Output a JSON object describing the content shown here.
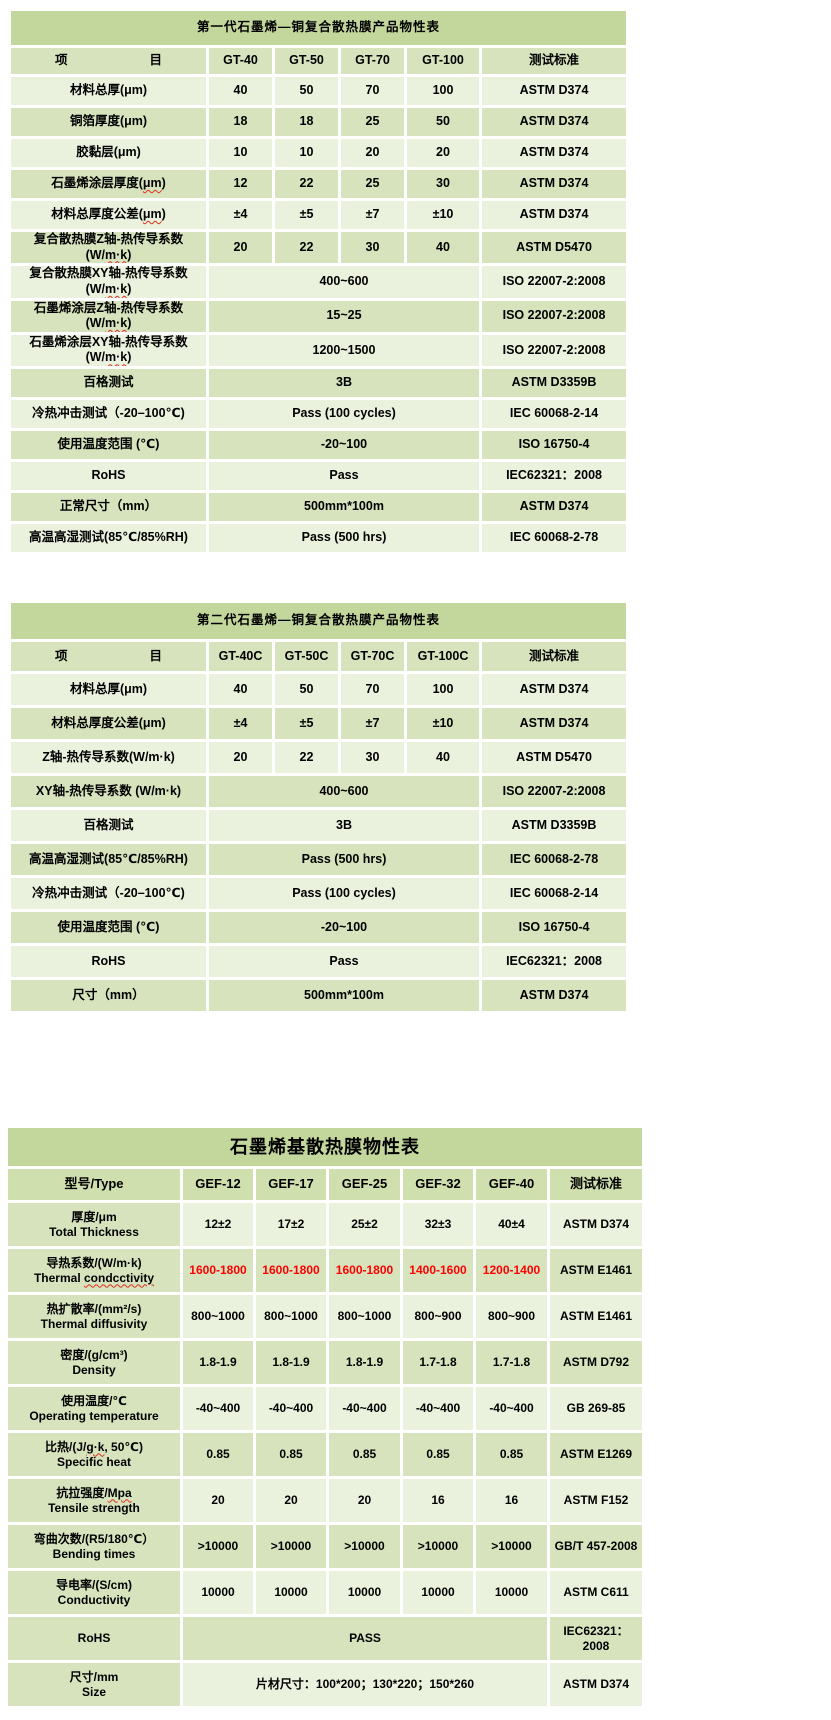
{
  "colors": {
    "title_bg": "#c3d69b",
    "band_dark": "#d6e3bc",
    "band_light": "#eaf1dd",
    "header_bg": "#d0dfae",
    "grid": "#ffffff",
    "text": "#000000",
    "highlight_red": "#ff0000"
  },
  "table1": {
    "title": "第一代石墨烯—铜复合散热膜产品物性表",
    "item_header_left": "项",
    "item_header_right": "目",
    "columns": [
      "GT-40",
      "GT-50",
      "GT-70",
      "GT-100"
    ],
    "standard_header": "测试标准",
    "rows": [
      {
        "label": [
          [
            "材料总厚(μm)",
            0
          ]
        ],
        "values": [
          "40",
          "50",
          "70",
          "100"
        ],
        "standard": "ASTM D374"
      },
      {
        "label": [
          [
            "铜箔厚度(μm)",
            0
          ]
        ],
        "values": [
          "18",
          "18",
          "25",
          "50"
        ],
        "standard": "ASTM D374"
      },
      {
        "label": [
          [
            "胶黏层(μm)",
            0
          ]
        ],
        "values": [
          "10",
          "10",
          "20",
          "20"
        ],
        "standard": "ASTM D374"
      },
      {
        "label": [
          [
            "石墨烯涂层厚度(",
            0
          ],
          [
            "μm",
            1
          ],
          [
            ")",
            0
          ]
        ],
        "values": [
          "12",
          "22",
          "25",
          "30"
        ],
        "standard": "ASTM D374"
      },
      {
        "label": [
          [
            "材料总厚度公差(",
            0
          ],
          [
            "μm",
            1
          ],
          [
            ")",
            0
          ]
        ],
        "values": [
          "±4",
          "±5",
          "±7",
          "±10"
        ],
        "standard": "ASTM D374"
      },
      {
        "label": [
          [
            "复合散热膜Z轴-热传导系数(W/",
            0
          ],
          [
            "m·k",
            1
          ],
          [
            ")",
            0
          ]
        ],
        "values": [
          "20",
          "22",
          "30",
          "40"
        ],
        "standard": "ASTM D5470"
      },
      {
        "label": [
          [
            "复合散热膜XY轴-热传导系数 (W/",
            0
          ],
          [
            "m·k",
            1
          ],
          [
            ")",
            0
          ]
        ],
        "value": "400~600",
        "standard": "ISO 22007-2:2008"
      },
      {
        "label": [
          [
            "石墨烯涂层Z轴-热传导系数(W/",
            0
          ],
          [
            "m·k",
            1
          ],
          [
            ")",
            0
          ]
        ],
        "value": "15~25",
        "standard": "ISO 22007-2:2008"
      },
      {
        "label": [
          [
            "石墨烯涂层XY轴-热传导系数 (W/",
            0
          ],
          [
            "m·k",
            1
          ],
          [
            ")",
            0
          ]
        ],
        "value": "1200~1500",
        "standard": "ISO 22007-2:2008"
      },
      {
        "label": [
          [
            "百格测试",
            0
          ]
        ],
        "value": "3B",
        "standard": "ASTM D3359B"
      },
      {
        "label": [
          [
            "冷热冲击测试（-20–100℃)",
            0
          ]
        ],
        "value": "Pass (100 cycles)",
        "standard": "IEC 60068-2-14"
      },
      {
        "label": [
          [
            "使用温度范围 (℃)",
            0
          ]
        ],
        "value": "-20~100",
        "standard": "ISO 16750-4"
      },
      {
        "label": [
          [
            "RoHS",
            0
          ]
        ],
        "value": "Pass",
        "standard": "IEC62321：2008"
      },
      {
        "label": [
          [
            "正常尺寸（mm）",
            0
          ]
        ],
        "value": "500mm*100m",
        "standard": "ASTM D374"
      },
      {
        "label": [
          [
            "高温高湿测试(85℃/85%RH)",
            0
          ]
        ],
        "value": "Pass (500 hrs)",
        "standard": "IEC 60068-2-78"
      }
    ]
  },
  "table2": {
    "title": "第二代石墨烯—铜复合散热膜产品物性表",
    "item_header_left": "项",
    "item_header_right": "目",
    "columns": [
      "GT-40C",
      "GT-50C",
      "GT-70C",
      "GT-100C"
    ],
    "standard_header": "测试标准",
    "rows": [
      {
        "label": [
          [
            "材料总厚(μm)",
            0
          ]
        ],
        "values": [
          "40",
          "50",
          "70",
          "100"
        ],
        "standard": "ASTM D374"
      },
      {
        "label": [
          [
            "材料总厚度公差(μm)",
            0
          ]
        ],
        "values": [
          "±4",
          "±5",
          "±7",
          "±10"
        ],
        "standard": "ASTM D374"
      },
      {
        "label": [
          [
            "Z轴-热传导系数(W/m·k)",
            0
          ]
        ],
        "values": [
          "20",
          "22",
          "30",
          "40"
        ],
        "standard": "ASTM D5470"
      },
      {
        "label": [
          [
            "XY轴-热传导系数 (W/m·k)",
            0
          ]
        ],
        "value": "400~600",
        "standard": "ISO 22007-2:2008"
      },
      {
        "label": [
          [
            "百格测试",
            0
          ]
        ],
        "value": "3B",
        "standard": "ASTM D3359B"
      },
      {
        "label": [
          [
            "高温高湿测试(85℃/85%RH)",
            0
          ]
        ],
        "value": "Pass (500 hrs)",
        "standard": "IEC 60068-2-78"
      },
      {
        "label": [
          [
            "冷热冲击测试（-20–100℃)",
            0
          ]
        ],
        "value": "Pass (100 cycles)",
        "standard": "IEC 60068-2-14"
      },
      {
        "label": [
          [
            "使用温度范围 (℃)",
            0
          ]
        ],
        "value": "-20~100",
        "standard": "ISO 16750-4"
      },
      {
        "label": [
          [
            "RoHS",
            0
          ]
        ],
        "value": "Pass",
        "standard": "IEC62321：2008"
      },
      {
        "label": [
          [
            "尺寸（mm）",
            0
          ]
        ],
        "value": "500mm*100m",
        "standard": "ASTM D374"
      }
    ]
  },
  "table3": {
    "title": "石墨烯基散热膜物性表",
    "type_header": "型号/Type",
    "columns": [
      "GEF-12",
      "GEF-17",
      "GEF-25",
      "GEF-32",
      "GEF-40"
    ],
    "standard_header": "测试标准",
    "rows": [
      {
        "cn": [
          [
            "厚度/μm",
            0
          ]
        ],
        "en": [
          [
            "Total Thickness",
            0
          ]
        ],
        "values": [
          "12±2",
          "17±2",
          "25±2",
          "32±3",
          "40±4"
        ],
        "standard": "ASTM D374"
      },
      {
        "cn": [
          [
            "导热系数/(W/m·k)",
            0
          ]
        ],
        "en": [
          [
            "Thermal ",
            0
          ],
          [
            "condcctivity",
            1
          ]
        ],
        "values": [
          "1600-1800",
          "1600-1800",
          "1600-1800",
          "1400-1600",
          "1200-1400"
        ],
        "standard": "ASTM E1461",
        "red": true
      },
      {
        "cn": [
          [
            "热扩散率/(mm²/s)",
            0
          ]
        ],
        "en": [
          [
            "Thermal diffusivity",
            0
          ]
        ],
        "values": [
          "800~1000",
          "800~1000",
          "800~1000",
          "800~900",
          "800~900"
        ],
        "standard": "ASTM E1461"
      },
      {
        "cn": [
          [
            "密度/(g/cm³)",
            0
          ]
        ],
        "en": [
          [
            "Density",
            0
          ]
        ],
        "values": [
          "1.8-1.9",
          "1.8-1.9",
          "1.8-1.9",
          "1.7-1.8",
          "1.7-1.8"
        ],
        "standard": "ASTM D792"
      },
      {
        "cn": [
          [
            "使用温度/℃",
            0
          ]
        ],
        "en": [
          [
            "Operating temperature",
            0
          ]
        ],
        "values": [
          "-40~400",
          "-40~400",
          "-40~400",
          "-40~400",
          "-40~400"
        ],
        "standard": "GB 269-85"
      },
      {
        "cn": [
          [
            "比热/(J/",
            0
          ],
          [
            "g·k",
            1
          ],
          [
            ", 50℃)",
            0
          ]
        ],
        "en": [
          [
            "Specific heat",
            0
          ]
        ],
        "values": [
          "0.85",
          "0.85",
          "0.85",
          "0.85",
          "0.85"
        ],
        "standard": "ASTM E1269"
      },
      {
        "cn": [
          [
            "抗拉强度/",
            0
          ],
          [
            "Mpa",
            1
          ]
        ],
        "en": [
          [
            "Tensile strength",
            0
          ]
        ],
        "values": [
          "20",
          "20",
          "20",
          "16",
          "16"
        ],
        "standard": "ASTM F152"
      },
      {
        "cn": [
          [
            "弯曲次数/(R5/180℃）",
            0
          ]
        ],
        "en": [
          [
            "Bending times",
            0
          ]
        ],
        "values": [
          ">10000",
          ">10000",
          ">10000",
          ">10000",
          ">10000"
        ],
        "standard": "GB/T 457-2008"
      },
      {
        "cn": [
          [
            "导电率/(S/cm)",
            0
          ]
        ],
        "en": [
          [
            "Conductivity",
            0
          ]
        ],
        "values": [
          "10000",
          "10000",
          "10000",
          "10000",
          "10000"
        ],
        "standard": "ASTM C611"
      },
      {
        "cn": [
          [
            "RoHS",
            0
          ]
        ],
        "value": "PASS",
        "standard": "IEC62321：2008"
      },
      {
        "cn": [
          [
            "尺寸/mm",
            0
          ]
        ],
        "en": [
          [
            "Size",
            0
          ]
        ],
        "value": "片材尺寸：100*200；130*220；150*260",
        "standard": "ASTM D374"
      }
    ]
  }
}
